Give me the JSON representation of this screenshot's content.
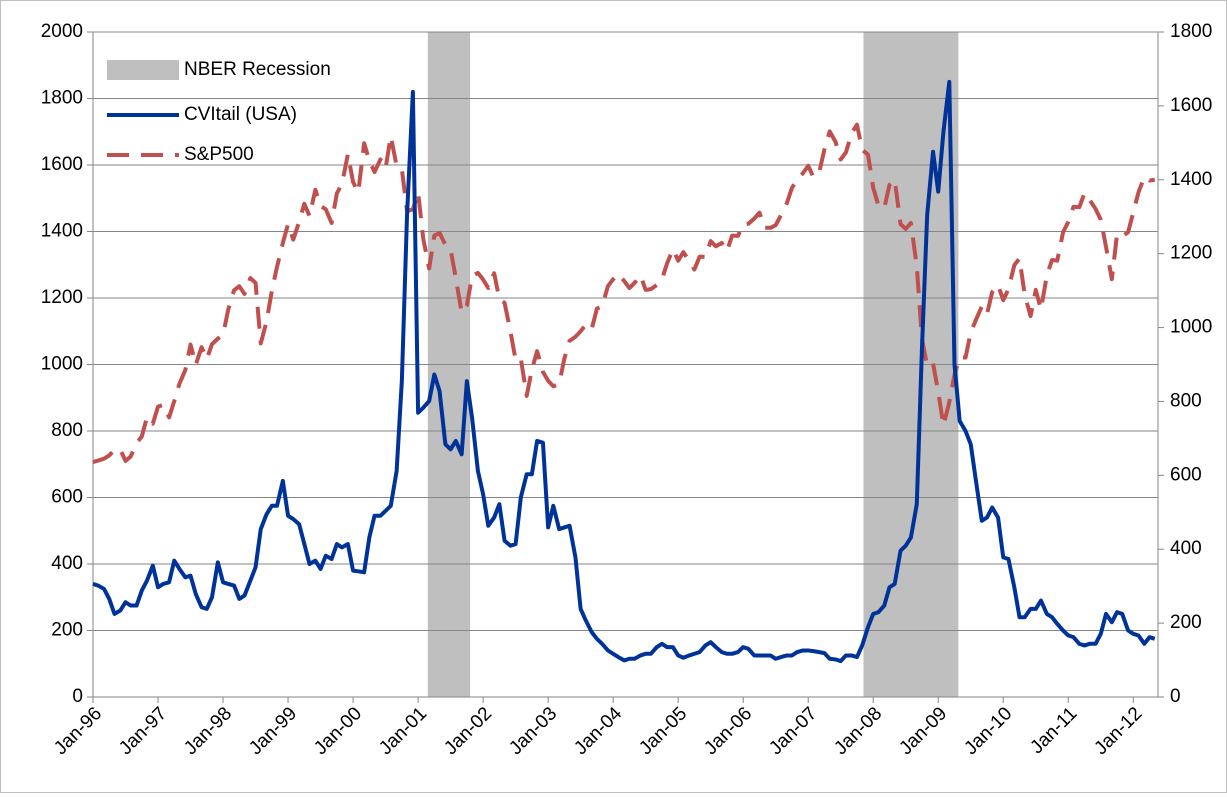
{
  "chart_data": {
    "type": "line",
    "x": [
      1996,
      1996.08,
      1996.17,
      1996.25,
      1996.33,
      1996.42,
      1996.5,
      1996.58,
      1996.67,
      1996.75,
      1996.83,
      1996.92,
      1997,
      1997.08,
      1997.17,
      1997.25,
      1997.33,
      1997.42,
      1997.5,
      1997.58,
      1997.67,
      1997.75,
      1997.83,
      1997.92,
      1998,
      1998.08,
      1998.17,
      1998.25,
      1998.33,
      1998.42,
      1998.5,
      1998.58,
      1998.67,
      1998.75,
      1998.83,
      1998.92,
      1999,
      1999.08,
      1999.17,
      1999.25,
      1999.33,
      1999.42,
      1999.5,
      1999.58,
      1999.67,
      1999.75,
      1999.83,
      1999.92,
      2000,
      2000.08,
      2000.17,
      2000.25,
      2000.33,
      2000.42,
      2000.5,
      2000.58,
      2000.67,
      2000.75,
      2000.83,
      2000.92,
      2001,
      2001.08,
      2001.17,
      2001.25,
      2001.33,
      2001.42,
      2001.5,
      2001.58,
      2001.67,
      2001.75,
      2001.83,
      2001.92,
      2002,
      2002.08,
      2002.17,
      2002.25,
      2002.33,
      2002.42,
      2002.5,
      2002.58,
      2002.67,
      2002.75,
      2002.83,
      2002.92,
      2003,
      2003.08,
      2003.17,
      2003.25,
      2003.33,
      2003.42,
      2003.5,
      2003.58,
      2003.67,
      2003.75,
      2003.83,
      2003.92,
      2004,
      2004.08,
      2004.17,
      2004.25,
      2004.33,
      2004.42,
      2004.5,
      2004.58,
      2004.67,
      2004.75,
      2004.83,
      2004.92,
      2005,
      2005.08,
      2005.17,
      2005.25,
      2005.33,
      2005.42,
      2005.5,
      2005.58,
      2005.67,
      2005.75,
      2005.83,
      2005.92,
      2006,
      2006.08,
      2006.17,
      2006.25,
      2006.33,
      2006.42,
      2006.5,
      2006.58,
      2006.67,
      2006.75,
      2006.83,
      2006.92,
      2007,
      2007.08,
      2007.17,
      2007.25,
      2007.33,
      2007.42,
      2007.5,
      2007.58,
      2007.67,
      2007.75,
      2007.83,
      2007.92,
      2008,
      2008.08,
      2008.17,
      2008.25,
      2008.33,
      2008.42,
      2008.5,
      2008.58,
      2008.67,
      2008.75,
      2008.83,
      2008.92,
      2009,
      2009.08,
      2009.17,
      2009.25,
      2009.33,
      2009.42,
      2009.5,
      2009.58,
      2009.67,
      2009.75,
      2009.83,
      2009.92,
      2010,
      2010.08,
      2010.17,
      2010.25,
      2010.33,
      2010.42,
      2010.5,
      2010.58,
      2010.67,
      2010.75,
      2010.83,
      2010.92,
      2011,
      2011.08,
      2011.17,
      2011.25,
      2011.33,
      2011.42,
      2011.5,
      2011.58,
      2011.67,
      2011.75,
      2011.83,
      2011.92,
      2012,
      2012.08,
      2012.17,
      2012.25,
      2012.33
    ],
    "bands": {
      "name": "NBER Recession",
      "color": "#bfbfbf",
      "ranges": [
        [
          2001.15,
          2001.8
        ],
        [
          2007.85,
          2009.31
        ]
      ]
    },
    "series": [
      {
        "name": "CVItail (USA)",
        "color": "#003399",
        "axis": "y",
        "values": [
          340,
          335,
          325,
          295,
          250,
          260,
          285,
          275,
          275,
          320,
          350,
          395,
          330,
          340,
          345,
          410,
          385,
          360,
          365,
          310,
          270,
          265,
          300,
          405,
          345,
          340,
          335,
          295,
          305,
          350,
          390,
          505,
          550,
          575,
          575,
          650,
          545,
          535,
          520,
          460,
          400,
          410,
          385,
          425,
          415,
          460,
          450,
          460,
          380,
          378,
          375,
          480,
          545,
          545,
          560,
          575,
          680,
          950,
          1450,
          1820,
          855,
          870,
          890,
          970,
          920,
          760,
          745,
          770,
          730,
          950,
          840,
          680,
          610,
          515,
          540,
          580,
          470,
          455,
          460,
          600,
          670,
          670,
          770,
          765,
          510,
          575,
          505,
          510,
          515,
          420,
          265,
          230,
          195,
          175,
          160,
          140,
          130,
          120,
          110,
          115,
          115,
          125,
          130,
          130,
          150,
          160,
          150,
          150,
          125,
          118,
          125,
          130,
          135,
          155,
          165,
          150,
          135,
          130,
          130,
          135,
          150,
          145,
          125,
          125,
          125,
          125,
          115,
          120,
          125,
          125,
          135,
          140,
          140,
          138,
          135,
          132,
          115,
          113,
          108,
          125,
          125,
          120,
          155,
          210,
          250,
          255,
          275,
          330,
          340,
          440,
          455,
          480,
          580,
          1050,
          1450,
          1640,
          1520,
          1700,
          1850,
          1000,
          830,
          800,
          760,
          650,
          530,
          540,
          570,
          540,
          420,
          415,
          330,
          240,
          240,
          265,
          265,
          290,
          250,
          240,
          220,
          200,
          185,
          180,
          160,
          155,
          160,
          160,
          190,
          250,
          225,
          255,
          250,
          200,
          190,
          185,
          160,
          180,
          175
        ]
      },
      {
        "name": "S&P500",
        "color": "#c0504d",
        "axis": "y2",
        "dashed": true,
        "values": [
          636,
          640,
          645,
          654,
          669,
          670,
          639,
          651,
          687,
          705,
          757,
          740,
          786,
          791,
          757,
          801,
          848,
          885,
          954,
          899,
          947,
          915,
          955,
          970,
          980,
          1049,
          1101,
          1112,
          1091,
          1134,
          1121,
          957,
          1017,
          1099,
          1164,
          1229,
          1280,
          1238,
          1286,
          1335,
          1302,
          1373,
          1329,
          1320,
          1283,
          1363,
          1389,
          1469,
          1394,
          1366,
          1499,
          1452,
          1421,
          1455,
          1431,
          1518,
          1437,
          1429,
          1315,
          1320,
          1366,
          1240,
          1160,
          1249,
          1256,
          1224,
          1211,
          1134,
          1041,
          1060,
          1139,
          1148,
          1130,
          1107,
          1147,
          1077,
          1067,
          990,
          912,
          916,
          815,
          886,
          936,
          880,
          856,
          841,
          848,
          916,
          964,
          975,
          990,
          1008,
          996,
          1051,
          1058,
          1112,
          1131,
          1145,
          1126,
          1107,
          1121,
          1141,
          1102,
          1104,
          1115,
          1130,
          1174,
          1212,
          1181,
          1204,
          1181,
          1157,
          1192,
          1191,
          1234,
          1220,
          1229,
          1207,
          1249,
          1248,
          1280,
          1281,
          1295,
          1311,
          1270,
          1270,
          1277,
          1304,
          1336,
          1378,
          1401,
          1418,
          1438,
          1407,
          1421,
          1482,
          1531,
          1503,
          1455,
          1474,
          1527,
          1549,
          1481,
          1468,
          1378,
          1331,
          1323,
          1386,
          1400,
          1280,
          1267,
          1283,
          1165,
          969,
          896,
          903,
          826,
          735,
          798,
          873,
          919,
          919,
          987,
          1021,
          1057,
          1036,
          1096,
          1115,
          1074,
          1104,
          1169,
          1187,
          1089,
          1031,
          1102,
          1049,
          1141,
          1183,
          1181,
          1258,
          1286,
          1327,
          1326,
          1364,
          1345,
          1321,
          1292,
          1219,
          1131,
          1253,
          1247,
          1258,
          1312,
          1366,
          1408,
          1398,
          1400
        ]
      }
    ],
    "xlim": [
      1996,
      2012.38
    ],
    "xticks": [
      {
        "value": 1996,
        "label": "Jan-96"
      },
      {
        "value": 1997,
        "label": "Jan-97"
      },
      {
        "value": 1998,
        "label": "Jan-98"
      },
      {
        "value": 1999,
        "label": "Jan-99"
      },
      {
        "value": 2000,
        "label": "Jan-00"
      },
      {
        "value": 2001,
        "label": "Jan-01"
      },
      {
        "value": 2002,
        "label": "Jan-02"
      },
      {
        "value": 2003,
        "label": "Jan-03"
      },
      {
        "value": 2004,
        "label": "Jan-04"
      },
      {
        "value": 2005,
        "label": "Jan-05"
      },
      {
        "value": 2006,
        "label": "Jan-06"
      },
      {
        "value": 2007,
        "label": "Jan-07"
      },
      {
        "value": 2008,
        "label": "Jan-08"
      },
      {
        "value": 2009,
        "label": "Jan-09"
      },
      {
        "value": 2010,
        "label": "Jan-10"
      },
      {
        "value": 2011,
        "label": "Jan-11"
      },
      {
        "value": 2012,
        "label": "Jan-12"
      }
    ],
    "ylim": [
      0,
      2000
    ],
    "yticks": [
      0,
      200,
      400,
      600,
      800,
      1000,
      1200,
      1400,
      1600,
      1800,
      2000
    ],
    "y2lim": [
      0,
      1800
    ],
    "y2ticks": [
      0,
      200,
      400,
      600,
      800,
      1000,
      1200,
      1400,
      1600,
      1800
    ],
    "grid": true,
    "legend": "top-left"
  }
}
